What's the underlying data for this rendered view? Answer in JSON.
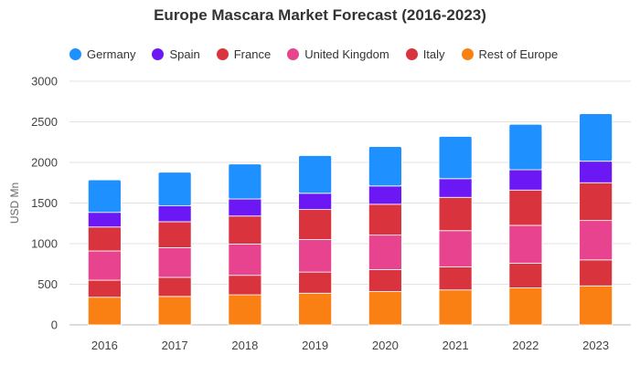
{
  "colors": {
    "Germany": "#1e90ff",
    "Spain": "#6c18f5",
    "France": "#d9343d",
    "United Kingdom": "#e8438f",
    "Italy": "#d9343d",
    "Rest of Europe": "#fb8014"
  },
  "chart_data": {
    "type": "bar",
    "title": "Europe Mascara Market Forecast (2016-2023)",
    "xlabel": "",
    "ylabel": "USD Mn",
    "ylim": [
      0,
      3000
    ],
    "yticks": [
      0,
      500,
      1000,
      1500,
      2000,
      2500,
      3000
    ],
    "stacked": true,
    "grid": true,
    "legend_position": "top",
    "categories": [
      "2016",
      "2017",
      "2018",
      "2019",
      "2020",
      "2021",
      "2022",
      "2023"
    ],
    "series": [
      {
        "name": "Rest of Europe",
        "values": [
          340,
          350,
          370,
          390,
          410,
          430,
          455,
          480
        ]
      },
      {
        "name": "Italy",
        "values": [
          210,
          235,
          240,
          260,
          270,
          285,
          305,
          320
        ]
      },
      {
        "name": "United Kingdom",
        "values": [
          360,
          365,
          385,
          400,
          425,
          445,
          465,
          485
        ]
      },
      {
        "name": "France",
        "values": [
          295,
          320,
          345,
          370,
          380,
          410,
          435,
          465
        ]
      },
      {
        "name": "Spain",
        "values": [
          180,
          195,
          210,
          200,
          225,
          230,
          250,
          265
        ]
      },
      {
        "name": "Germany",
        "values": [
          400,
          415,
          430,
          465,
          485,
          520,
          560,
          585
        ]
      }
    ],
    "legend_order": [
      "Germany",
      "Spain",
      "France",
      "United Kingdom",
      "Italy",
      "Rest of Europe"
    ]
  }
}
